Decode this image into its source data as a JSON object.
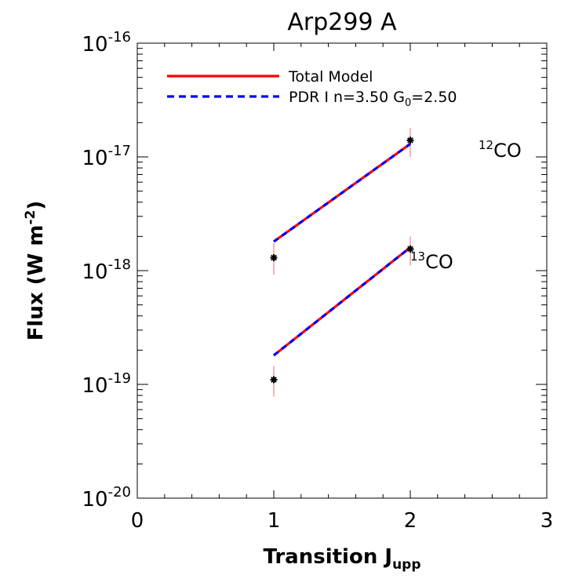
{
  "chart_data": {
    "type": "line",
    "title": "Arp299 A",
    "xlabel": "Transition J",
    "xlabel_sub": "upp",
    "ylabel": "Flux (W m",
    "ylabel_sup": "-2",
    "ylabel_end": ")",
    "xlim": [
      0,
      3
    ],
    "ylim": [
      1e-20,
      1e-16
    ],
    "yscale": "log",
    "x_ticks": [
      0,
      1,
      2,
      3
    ],
    "x_tick_labels": [
      "0",
      "1",
      "2",
      "3"
    ],
    "y_ticks": [
      1e-20,
      1e-19,
      1e-18,
      1e-17,
      1e-16
    ],
    "y_tick_labels": [
      {
        "base": "10",
        "exp": "-20"
      },
      {
        "base": "10",
        "exp": "-19"
      },
      {
        "base": "10",
        "exp": "-18"
      },
      {
        "base": "10",
        "exp": "-17"
      },
      {
        "base": "10",
        "exp": "-16"
      }
    ],
    "grid": false,
    "legend_position": "top-left",
    "legend": [
      {
        "text": "Total Model",
        "color": "#ff0000",
        "style": "solid"
      },
      {
        "text": "PDR I n=3.50 G",
        "sub": "0",
        "text_after": "=2.50",
        "color": "#0000ff",
        "style": "dashed"
      }
    ],
    "series": [
      {
        "name": "Total Model",
        "color": "#ff0000",
        "style": "solid",
        "segments": [
          {
            "x": [
              1,
              2
            ],
            "y": [
              1.8e-18,
              1.3e-17
            ]
          },
          {
            "x": [
              1,
              2
            ],
            "y": [
              1.8e-19,
              1.6e-18
            ]
          }
        ]
      },
      {
        "name": "PDR I n=3.50 G0=2.50",
        "color": "#0000ff",
        "style": "dashed",
        "segments": [
          {
            "x": [
              1,
              2
            ],
            "y": [
              1.8e-18,
              1.3e-17
            ]
          },
          {
            "x": [
              1,
              2
            ],
            "y": [
              1.8e-19,
              1.6e-18
            ]
          }
        ]
      }
    ],
    "observations": [
      {
        "x": 1,
        "y": 1.3e-18,
        "y_low": 9.2e-19,
        "y_high": 1.75e-18
      },
      {
        "x": 2,
        "y": 1.4e-17,
        "y_low": 1e-17,
        "y_high": 1.8e-17
      },
      {
        "x": 1,
        "y": 1.1e-19,
        "y_low": 7.8e-20,
        "y_high": 1.45e-19
      },
      {
        "x": 2,
        "y": 1.55e-18,
        "y_low": 1.1e-18,
        "y_high": 2e-18
      }
    ],
    "marker_color": "#000000",
    "errorbar_color": "#ff6666",
    "annotations": [
      {
        "sup": "12",
        "text": "CO",
        "x": 2.5,
        "y": 1e-17
      },
      {
        "sup": "13",
        "text": "CO",
        "x": 2.0,
        "y": 1.05e-18
      }
    ]
  }
}
